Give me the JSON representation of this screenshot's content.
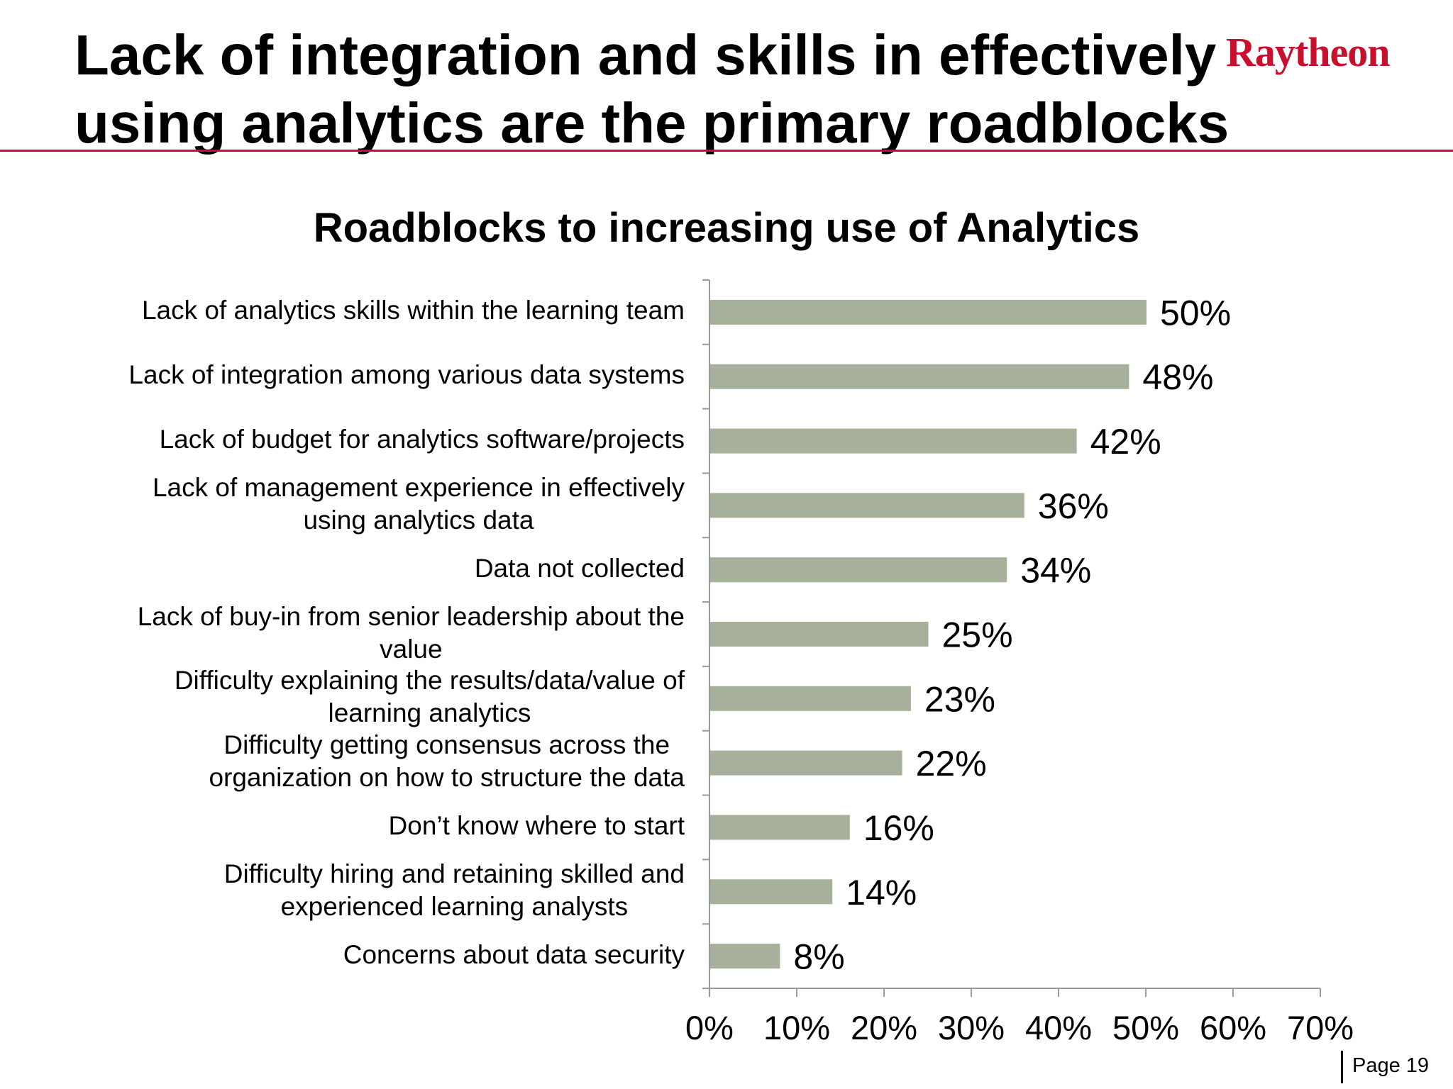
{
  "slide": {
    "title_line1": "Lack of integration and skills in effectively",
    "title_line2": "using analytics are the primary roadblocks",
    "logo_text": "Raytheon",
    "page_label": "Page 19",
    "accent_color": "#c8102e"
  },
  "chart_data": {
    "type": "bar",
    "orientation": "horizontal",
    "title": "Roadblocks to increasing use of Analytics",
    "categories": [
      "Lack of analytics skills within the learning team",
      "Lack of integration among various data systems",
      "Lack of budget for analytics software/projects",
      "Lack of management experience in effectively\nusing analytics data",
      "Data not collected",
      "Lack of buy-in from senior leadership about the\nvalue",
      "Difficulty explaining the results/data/value of\nlearning analytics",
      "Difficulty getting consensus across the\norganization on how to structure the data",
      "Don’t know where to start",
      "Difficulty hiring and retaining skilled and\nexperienced learning analysts",
      "Concerns about data security"
    ],
    "values": [
      50,
      48,
      42,
      36,
      34,
      25,
      23,
      22,
      16,
      14,
      8
    ],
    "data_labels": [
      "50%",
      "48%",
      "42%",
      "36%",
      "34%",
      "25%",
      "23%",
      "22%",
      "16%",
      "14%",
      "8%"
    ],
    "xlim": [
      0,
      70
    ],
    "xticks": [
      0,
      10,
      20,
      30,
      40,
      50,
      60,
      70
    ],
    "xtick_labels": [
      "0%",
      "10%",
      "20%",
      "30%",
      "40%",
      "50%",
      "60%",
      "70%"
    ],
    "bar_color": "#a6b09b",
    "grid": false,
    "legend": "none"
  }
}
